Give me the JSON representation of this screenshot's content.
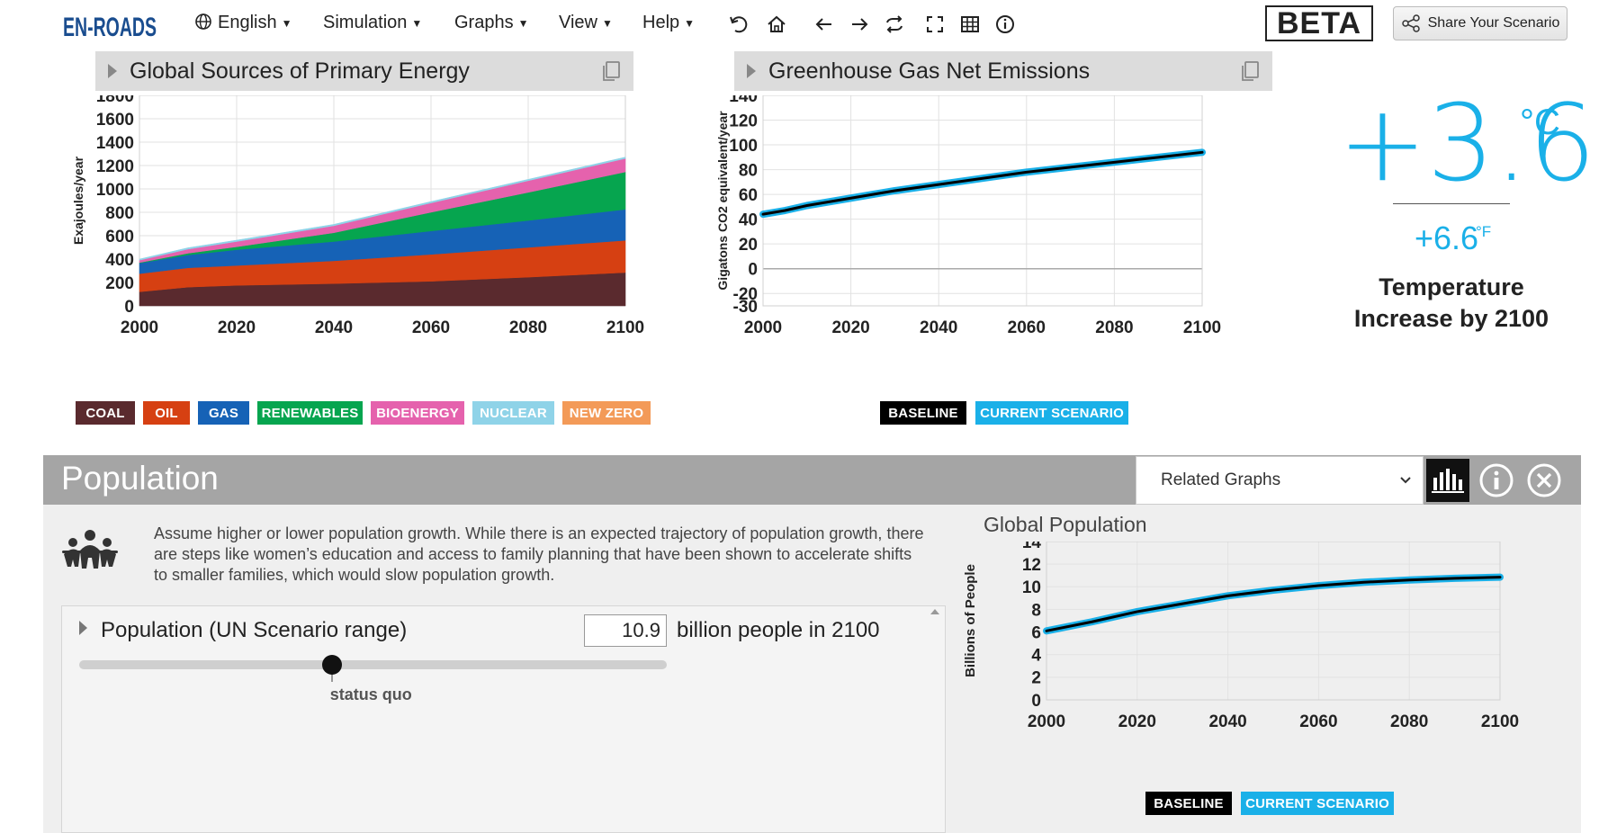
{
  "topbar": {
    "logo_text": "EN-ROADS",
    "menu": [
      {
        "label": "English",
        "icon": "globe-icon"
      },
      {
        "label": "Simulation"
      },
      {
        "label": "Graphs"
      },
      {
        "label": "View"
      },
      {
        "label": "Help"
      }
    ],
    "tools": [
      "undo-icon",
      "home-icon",
      "back-arrow-icon",
      "forward-arrow-icon",
      "swap-icon",
      "fullscreen-icon",
      "table-icon",
      "info-icon"
    ],
    "beta_label": "BETA",
    "share_label": "Share Your Scenario"
  },
  "energy_graph": {
    "title": "Global Sources of Primary Energy",
    "legend": [
      {
        "label": "COAL",
        "color": "#5a2a2e"
      },
      {
        "label": "OIL",
        "color": "#d64012"
      },
      {
        "label": "GAS",
        "color": "#1662b6"
      },
      {
        "label": "RENEWABLES",
        "color": "#06a54f"
      },
      {
        "label": "BIOENERGY",
        "color": "#e562ad"
      },
      {
        "label": "NUCLEAR",
        "color": "#8fd3e8"
      },
      {
        "label": "NEW ZERO",
        "color": "#f39a58"
      }
    ]
  },
  "emissions_graph": {
    "title": "Greenhouse Gas Net Emissions",
    "legend": [
      {
        "label": "BASELINE",
        "color": "#000000"
      },
      {
        "label": "CURRENT SCENARIO",
        "color": "#1ab0e8"
      }
    ]
  },
  "temperature": {
    "celsius": "+3.6",
    "celsius_unit": "°C",
    "fahrenheit": "+6.6",
    "fahrenheit_unit": "°F",
    "label": "Temperature Increase by 2100"
  },
  "population_panel": {
    "title": "Population",
    "related_graphs_label": "Related Graphs",
    "description": "Assume higher or lower population growth. While there is an expected trajectory of population growth, there are steps like women’s education and access to family planning that have been shown to accelerate shifts to smaller families, which would slow population growth.",
    "slider": {
      "label": "Population (UN Scenario range)",
      "value": "10.9",
      "unit": "billion people in 2100",
      "caption": "status quo",
      "position_fraction": 0.43
    },
    "graph_title": "Global Population",
    "legend": [
      {
        "label": "BASELINE",
        "color": "#000000"
      },
      {
        "label": "CURRENT SCENARIO",
        "color": "#1ab0e8"
      }
    ]
  },
  "chart_data": [
    {
      "type": "area",
      "title": "Global Sources of Primary Energy",
      "xlabel": "",
      "ylabel": "Exajoules/year",
      "xlim": [
        2000,
        2100
      ],
      "ylim": [
        0,
        1800
      ],
      "x_ticks": [
        2000,
        2020,
        2040,
        2060,
        2080,
        2100
      ],
      "y_ticks": [
        0,
        200,
        400,
        600,
        800,
        1000,
        1200,
        1400,
        1600,
        1800
      ],
      "grid": true,
      "x": [
        2000,
        2010,
        2020,
        2040,
        2060,
        2080,
        2100
      ],
      "stacked": true,
      "series": [
        {
          "name": "COAL",
          "color": "#5a2a2e",
          "values": [
            120,
            160,
            175,
            190,
            210,
            245,
            285
          ]
        },
        {
          "name": "OIL",
          "color": "#d64012",
          "values": [
            155,
            165,
            170,
            195,
            230,
            255,
            275
          ]
        },
        {
          "name": "GAS",
          "color": "#1662b6",
          "values": [
            90,
            110,
            135,
            165,
            200,
            230,
            265
          ]
        },
        {
          "name": "RENEWABLES",
          "color": "#06a54f",
          "values": [
            5,
            15,
            25,
            75,
            160,
            240,
            320
          ]
        },
        {
          "name": "BIOENERGY",
          "color": "#e562ad",
          "values": [
            20,
            35,
            45,
            60,
            80,
            100,
            115
          ]
        },
        {
          "name": "NUCLEAR",
          "color": "#8fd3e8",
          "values": [
            10,
            12,
            12,
            12,
            12,
            12,
            12
          ]
        },
        {
          "name": "NEW ZERO",
          "color": "#f39a58",
          "values": [
            0,
            0,
            0,
            0,
            0,
            0,
            0
          ]
        }
      ]
    },
    {
      "type": "line",
      "title": "Greenhouse Gas Net Emissions",
      "xlabel": "",
      "ylabel": "Gigatons CO2 equivalent/year",
      "xlim": [
        2000,
        2100
      ],
      "ylim": [
        -30,
        140
      ],
      "x_ticks": [
        2000,
        2020,
        2040,
        2060,
        2080,
        2100
      ],
      "y_ticks": [
        -30,
        -20,
        0,
        20,
        40,
        60,
        80,
        100,
        120,
        140
      ],
      "grid": true,
      "x": [
        2000,
        2005,
        2010,
        2015,
        2020,
        2030,
        2040,
        2050,
        2060,
        2070,
        2080,
        2090,
        2100
      ],
      "series": [
        {
          "name": "CURRENT SCENARIO",
          "color": "#1ab0e8",
          "values": [
            44,
            47,
            51,
            54,
            57,
            63,
            68,
            73,
            78,
            82,
            86,
            90,
            94
          ]
        },
        {
          "name": "BASELINE",
          "color": "#000000",
          "values": [
            44,
            47,
            51,
            54,
            57,
            63,
            68,
            73,
            78,
            82,
            86,
            90,
            94
          ]
        }
      ]
    },
    {
      "type": "line",
      "title": "Global Population",
      "xlabel": "",
      "ylabel": "Billions of People",
      "xlim": [
        2000,
        2100
      ],
      "ylim": [
        0,
        14
      ],
      "x_ticks": [
        2000,
        2020,
        2040,
        2060,
        2080,
        2100
      ],
      "y_ticks": [
        0,
        2,
        4,
        6,
        8,
        10,
        12,
        14
      ],
      "grid": true,
      "x": [
        2000,
        2010,
        2020,
        2030,
        2040,
        2050,
        2060,
        2070,
        2080,
        2090,
        2100
      ],
      "series": [
        {
          "name": "CURRENT SCENARIO",
          "color": "#1ab0e8",
          "values": [
            6.1,
            6.9,
            7.8,
            8.5,
            9.2,
            9.7,
            10.1,
            10.4,
            10.6,
            10.75,
            10.85
          ]
        },
        {
          "name": "BASELINE",
          "color": "#000000",
          "values": [
            6.1,
            6.9,
            7.8,
            8.5,
            9.2,
            9.7,
            10.1,
            10.4,
            10.6,
            10.75,
            10.85
          ]
        }
      ]
    }
  ]
}
